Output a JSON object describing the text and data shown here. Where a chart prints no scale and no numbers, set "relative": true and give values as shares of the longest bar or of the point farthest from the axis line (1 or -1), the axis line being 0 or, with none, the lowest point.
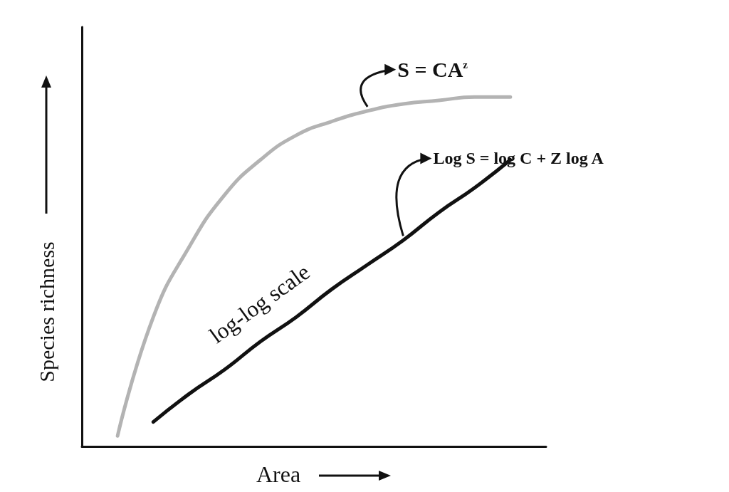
{
  "chart_data": {
    "type": "line",
    "relative": true,
    "xlabel": "Area",
    "ylabel": "Species richness",
    "categories": [
      null,
      null,
      null,
      null,
      null,
      null,
      null,
      null,
      null,
      null,
      null,
      null,
      null,
      null
    ],
    "series": [
      {
        "color": "#b3b3b3",
        "values": [
          null,
          0.03,
          0.37,
          0.57,
          0.72,
          0.82,
          0.89,
          0.93,
          0.96,
          0.98,
          0.99,
          1.0,
          1.0,
          null
        ]
      },
      {
        "color": "#111111",
        "values": [
          null,
          null,
          0.07,
          0.15,
          0.22,
          0.3,
          0.37,
          0.45,
          0.52,
          0.59,
          0.67,
          0.74,
          0.82,
          null
        ]
      }
    ],
    "annotations": [
      "S = CA$^{z}$",
      "Log S = log C + Z log A",
      "log-log scale"
    ],
    "grid": false,
    "marker": "none",
    "line_style": "solid"
  }
}
